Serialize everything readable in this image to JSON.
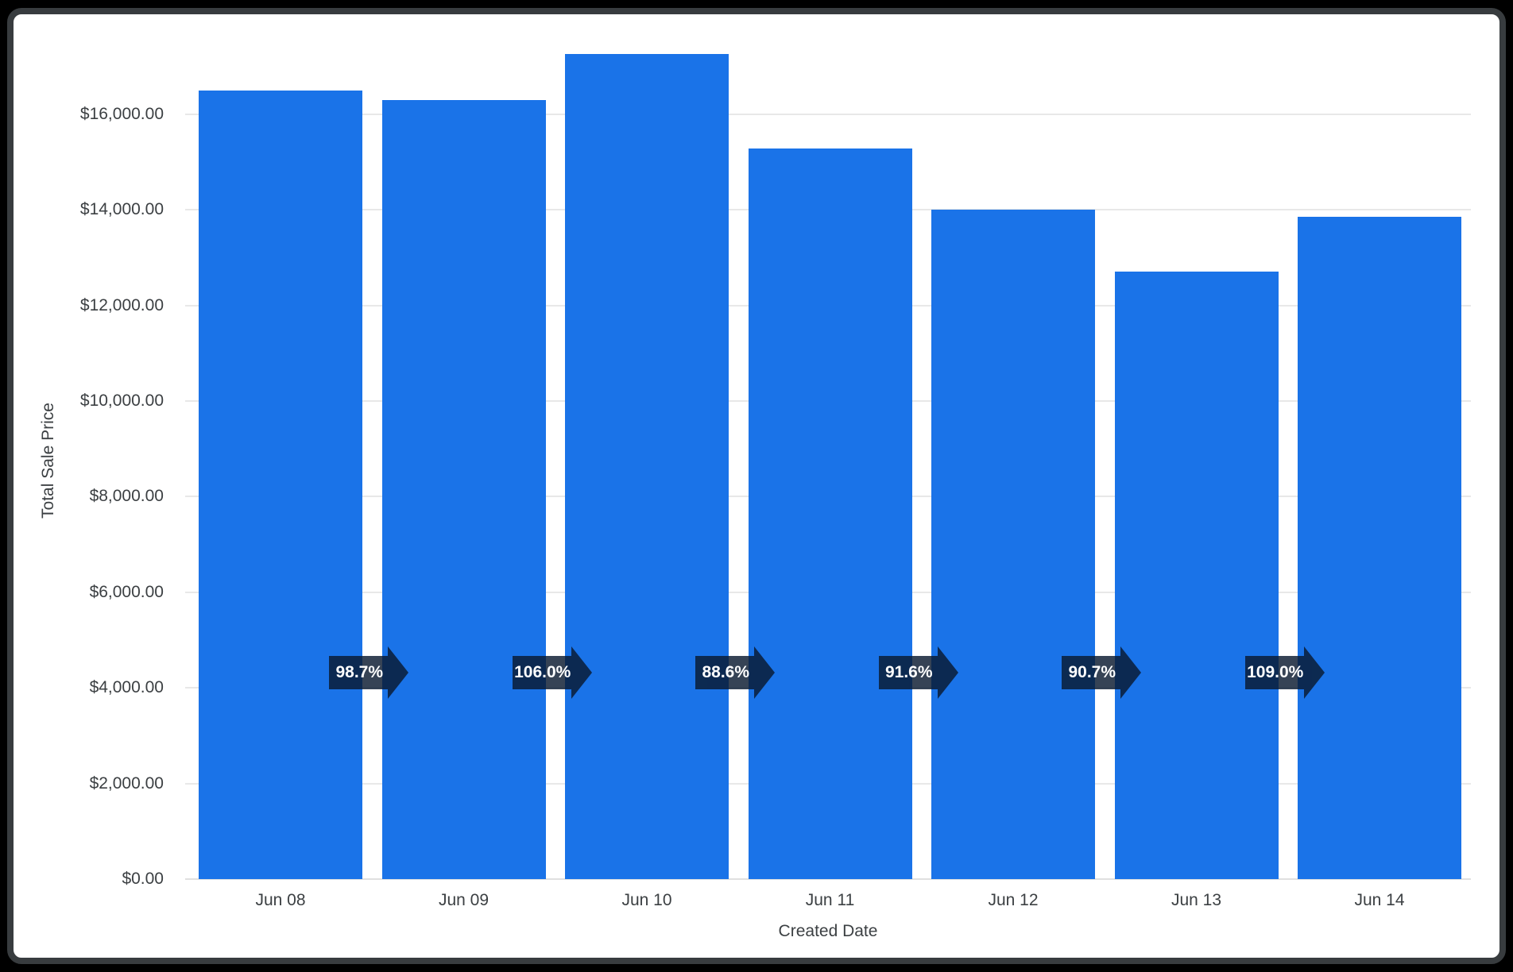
{
  "frame": {
    "background_color": "#000000",
    "card_background": "#ffffff",
    "card_border_color": "#383c3f"
  },
  "chart_data": {
    "type": "bar",
    "title": "",
    "xlabel": "Created Date",
    "ylabel": "Total Sale Price",
    "categories": [
      "Jun 08",
      "Jun 09",
      "Jun 10",
      "Jun 11",
      "Jun 12",
      "Jun 13",
      "Jun 14"
    ],
    "values": [
      16500,
      16290,
      17260,
      15290,
      14010,
      12710,
      13850
    ],
    "ylim": [
      0,
      17560
    ],
    "grid": true,
    "legend_position": "none",
    "bar_color": "#1a73e8",
    "axis_text_color": "#3c4043",
    "gridline_color": "#e8e8e8",
    "baseline_color": "#e0e0e0",
    "y_ticks": [
      {
        "value": 0,
        "label": "$0.00"
      },
      {
        "value": 2000,
        "label": "$2,000.00"
      },
      {
        "value": 4000,
        "label": "$4,000.00"
      },
      {
        "value": 6000,
        "label": "$6,000.00"
      },
      {
        "value": 8000,
        "label": "$8,000.00"
      },
      {
        "value": 10000,
        "label": "$10,000.00"
      },
      {
        "value": 12000,
        "label": "$12,000.00"
      },
      {
        "value": 14000,
        "label": "$14,000.00"
      },
      {
        "value": 16000,
        "label": "$16,000.00"
      }
    ],
    "change_arrows": {
      "labels": [
        "98.7%",
        "106.0%",
        "88.6%",
        "91.6%",
        "90.7%",
        "109.0%"
      ],
      "fill_color": "#0a1a30",
      "fill_opacity": 0.82,
      "text_color": "#ffffff"
    }
  }
}
